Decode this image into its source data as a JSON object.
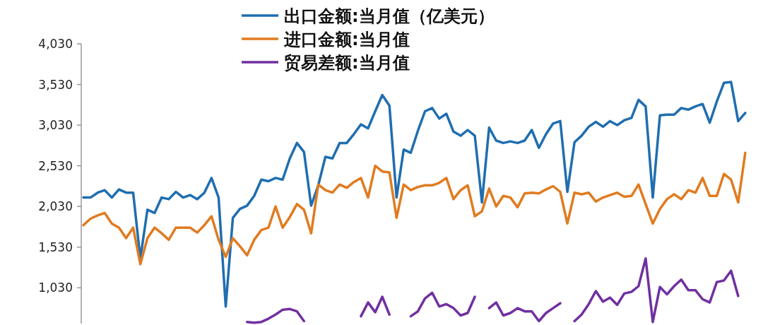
{
  "chart_data": {
    "type": "line",
    "categories": [
      null,
      null,
      null,
      null,
      null,
      null,
      null,
      null,
      null,
      null,
      null,
      null,
      null,
      null,
      null,
      null,
      null,
      null,
      null,
      null,
      null,
      null,
      null,
      null,
      null,
      null,
      null,
      null,
      null,
      null,
      null,
      null,
      null,
      null,
      null,
      null,
      null,
      null,
      null,
      null,
      null,
      null,
      null,
      null,
      null,
      null,
      null,
      null,
      null,
      null,
      null,
      null,
      null,
      null,
      null,
      null,
      null,
      null,
      null,
      null,
      null,
      null,
      null,
      null,
      null,
      null,
      null,
      null,
      null,
      null,
      null,
      null,
      null,
      null,
      null,
      null,
      null,
      null,
      null,
      null,
      null,
      null,
      null,
      null,
      null,
      null,
      null,
      null,
      null,
      null,
      null,
      null,
      null,
      null
    ],
    "series": [
      {
        "name": "出口金额:当月值（亿美元）",
        "color": "#1f6eb0",
        "values": [
          2140,
          2140,
          2200,
          2230,
          2140,
          2240,
          2200,
          2200,
          1390,
          1990,
          1950,
          2140,
          2120,
          2210,
          2140,
          2170,
          2120,
          2200,
          2380,
          2140,
          800,
          1890,
          2000,
          2040,
          2160,
          2360,
          2340,
          2380,
          2360,
          2620,
          2810,
          2700,
          2040,
          2290,
          2640,
          2620,
          2810,
          2810,
          2920,
          3040,
          2990,
          3200,
          3400,
          3270,
          2140,
          2730,
          2690,
          2960,
          3200,
          3240,
          3110,
          3170,
          2950,
          2900,
          2970,
          2900,
          2080,
          3000,
          2840,
          2810,
          2830,
          2810,
          2840,
          2970,
          2750,
          2920,
          3050,
          3080,
          2210,
          2820,
          2900,
          3010,
          3070,
          3010,
          3080,
          3030,
          3090,
          3120,
          3340,
          3260,
          2140,
          3150,
          3160,
          3160,
          3240,
          3220,
          3260,
          3290,
          3060,
          3320,
          3550,
          3560,
          3080,
          3180
        ]
      },
      {
        "name": "进口金额:当月值",
        "color": "#e07b20",
        "values": [
          1800,
          1880,
          1920,
          1950,
          1820,
          1770,
          1640,
          1770,
          1320,
          1640,
          1770,
          1700,
          1620,
          1770,
          1770,
          1770,
          1710,
          1800,
          1910,
          1620,
          1410,
          1640,
          1540,
          1430,
          1620,
          1740,
          1770,
          2030,
          1770,
          1900,
          2060,
          1990,
          1700,
          2300,
          2230,
          2200,
          2300,
          2260,
          2330,
          2380,
          2140,
          2530,
          2460,
          2450,
          1890,
          2300,
          2230,
          2270,
          2290,
          2290,
          2320,
          2380,
          2120,
          2230,
          2290,
          1910,
          1970,
          2250,
          2030,
          2160,
          2140,
          2020,
          2190,
          2200,
          2190,
          2240,
          2280,
          2210,
          1820,
          2200,
          2180,
          2200,
          2090,
          2140,
          2170,
          2200,
          2150,
          2160,
          2300,
          2060,
          1820,
          2000,
          2120,
          2180,
          2120,
          2230,
          2200,
          2380,
          2160,
          2160,
          2430,
          2360,
          2080,
          2690
        ]
      },
      {
        "name": "贸易差额:当月值",
        "color": "#7030a0",
        "values": [
          null,
          null,
          null,
          null,
          null,
          null,
          null,
          null,
          null,
          null,
          null,
          null,
          null,
          null,
          null,
          null,
          null,
          null,
          null,
          null,
          null,
          null,
          null,
          610,
          600,
          610,
          650,
          700,
          760,
          770,
          740,
          620,
          null,
          null,
          null,
          null,
          null,
          null,
          null,
          680,
          850,
          730,
          920,
          700,
          null,
          null,
          680,
          740,
          900,
          970,
          800,
          830,
          780,
          690,
          720,
          920,
          null,
          780,
          850,
          690,
          720,
          780,
          740,
          740,
          620,
          720,
          780,
          840,
          null,
          620,
          700,
          830,
          990,
          860,
          910,
          820,
          960,
          980,
          1050,
          1390,
          610,
          1040,
          950,
          1050,
          1130,
          1000,
          1000,
          890,
          850,
          1100,
          1120,
          1240,
          930,
          null
        ]
      }
    ],
    "ylim": [
      590,
      4030
    ],
    "yticks": [
      {
        "value": 1030,
        "label": "1,030"
      },
      {
        "value": 1530,
        "label": "1,530"
      },
      {
        "value": 2030,
        "label": "2,030"
      },
      {
        "value": 2530,
        "label": "2,530"
      },
      {
        "value": 3030,
        "label": "3,030"
      },
      {
        "value": 3530,
        "label": "3,530"
      },
      {
        "value": 4030,
        "label": "4,030"
      }
    ],
    "tick_labels": "y",
    "grid": false,
    "legend": "top",
    "marker": "none",
    "line_style": "solid"
  }
}
